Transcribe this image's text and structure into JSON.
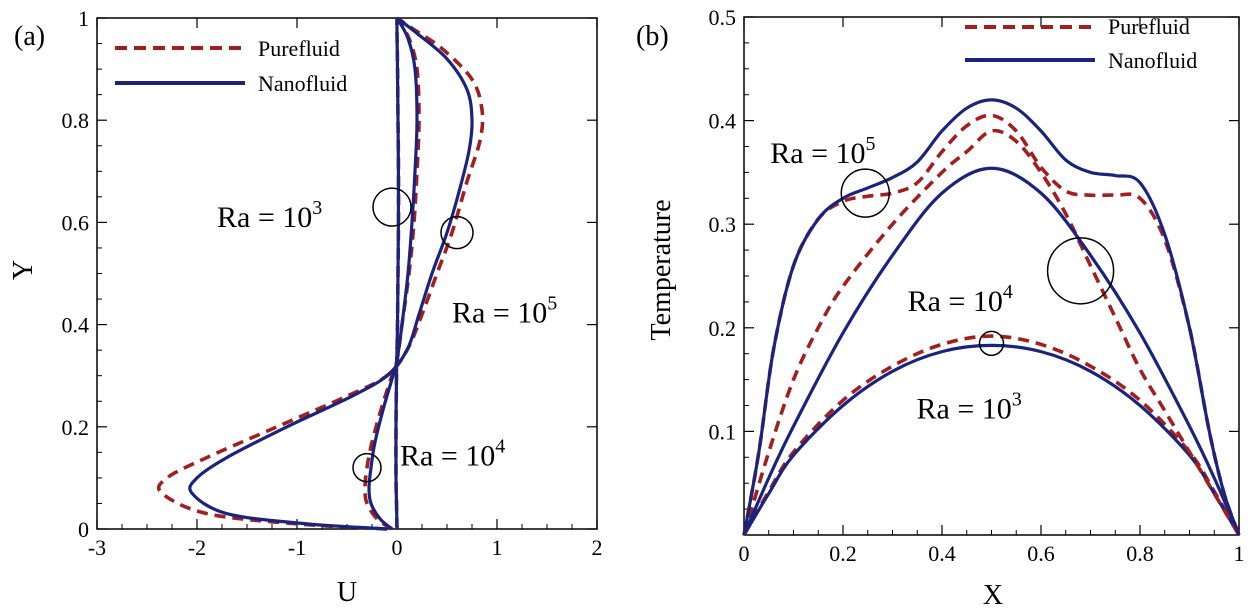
{
  "colors": {
    "pure": "#a31f1f",
    "nano": "#1a237e"
  },
  "chart_data": [
    {
      "type": "line",
      "panel_label": "(a)",
      "xlabel": "U",
      "ylabel": "Y",
      "xlim": [
        -3,
        2
      ],
      "ylim": [
        0,
        1
      ],
      "xticks": [
        "-3",
        "-2",
        "-1",
        "0",
        "1",
        "2"
      ],
      "yticks": [
        "0",
        "0.2",
        "0.4",
        "0.6",
        "0.8",
        "1"
      ],
      "legend": {
        "position": "top-left",
        "entries": [
          "Purefluid",
          "Nanofluid"
        ]
      },
      "annotations": [
        {
          "base": "Ra = 10",
          "exp": "3",
          "at_u": -0.05,
          "at_y": 0.63
        },
        {
          "base": "Ra = 10",
          "exp": "5",
          "at_u": 0.6,
          "at_y": 0.58
        },
        {
          "base": "Ra = 10",
          "exp": "4",
          "at_u": -0.3,
          "at_y": 0.12
        }
      ],
      "series": [
        {
          "name": "Purefluid",
          "ra": "1e3",
          "points": [
            [
              0,
              0
            ],
            [
              -0.005,
              0.05
            ],
            [
              -0.01,
              0.1
            ],
            [
              -0.01,
              0.2
            ],
            [
              -0.005,
              0.3
            ],
            [
              0,
              0.35
            ],
            [
              0.005,
              0.4
            ],
            [
              0.01,
              0.5
            ],
            [
              0.015,
              0.6
            ],
            [
              0.015,
              0.7
            ],
            [
              0.01,
              0.8
            ],
            [
              0.006,
              0.9
            ],
            [
              0,
              0.97
            ],
            [
              0,
              1
            ]
          ]
        },
        {
          "name": "Nanofluid",
          "ra": "1e3",
          "points": [
            [
              0,
              0
            ],
            [
              -0.005,
              0.05
            ],
            [
              -0.01,
              0.1
            ],
            [
              -0.01,
              0.2
            ],
            [
              -0.005,
              0.3
            ],
            [
              0,
              0.35
            ],
            [
              0.005,
              0.4
            ],
            [
              0.01,
              0.5
            ],
            [
              0.014,
              0.6
            ],
            [
              0.014,
              0.7
            ],
            [
              0.01,
              0.8
            ],
            [
              0.005,
              0.9
            ],
            [
              0,
              0.97
            ],
            [
              0,
              1
            ]
          ]
        },
        {
          "name": "Purefluid",
          "ra": "1e4",
          "points": [
            [
              -0.05,
              0
            ],
            [
              -0.2,
              0.02
            ],
            [
              -0.3,
              0.05
            ],
            [
              -0.32,
              0.08
            ],
            [
              -0.3,
              0.12
            ],
            [
              -0.25,
              0.17
            ],
            [
              -0.15,
              0.24
            ],
            [
              -0.05,
              0.3
            ],
            [
              0,
              0.33
            ],
            [
              0.05,
              0.4
            ],
            [
              0.12,
              0.5
            ],
            [
              0.17,
              0.6
            ],
            [
              0.2,
              0.7
            ],
            [
              0.22,
              0.8
            ],
            [
              0.2,
              0.9
            ],
            [
              0.12,
              0.96
            ],
            [
              0,
              1
            ]
          ]
        },
        {
          "name": "Nanofluid",
          "ra": "1e4",
          "points": [
            [
              -0.05,
              0
            ],
            [
              -0.17,
              0.02
            ],
            [
              -0.26,
              0.05
            ],
            [
              -0.28,
              0.08
            ],
            [
              -0.26,
              0.12
            ],
            [
              -0.22,
              0.17
            ],
            [
              -0.13,
              0.24
            ],
            [
              -0.04,
              0.3
            ],
            [
              0,
              0.33
            ],
            [
              0.05,
              0.4
            ],
            [
              0.11,
              0.5
            ],
            [
              0.15,
              0.6
            ],
            [
              0.18,
              0.7
            ],
            [
              0.2,
              0.8
            ],
            [
              0.18,
              0.9
            ],
            [
              0.11,
              0.96
            ],
            [
              0,
              1
            ]
          ]
        },
        {
          "name": "Purefluid",
          "ra": "1e5",
          "points": [
            [
              -0.1,
              0
            ],
            [
              -1.0,
              0.01
            ],
            [
              -1.9,
              0.03
            ],
            [
              -2.35,
              0.07
            ],
            [
              -2.3,
              0.1
            ],
            [
              -1.9,
              0.14
            ],
            [
              -1.2,
              0.2
            ],
            [
              -0.5,
              0.26
            ],
            [
              -0.1,
              0.3
            ],
            [
              0.1,
              0.35
            ],
            [
              0.25,
              0.42
            ],
            [
              0.4,
              0.5
            ],
            [
              0.55,
              0.58
            ],
            [
              0.7,
              0.68
            ],
            [
              0.83,
              0.76
            ],
            [
              0.85,
              0.82
            ],
            [
              0.75,
              0.88
            ],
            [
              0.45,
              0.94
            ],
            [
              0.15,
              0.98
            ],
            [
              0,
              1
            ]
          ]
        },
        {
          "name": "Nanofluid",
          "ra": "1e5",
          "points": [
            [
              -0.1,
              0
            ],
            [
              -0.9,
              0.01
            ],
            [
              -1.7,
              0.03
            ],
            [
              -2.05,
              0.07
            ],
            [
              -2.0,
              0.1
            ],
            [
              -1.7,
              0.14
            ],
            [
              -1.1,
              0.2
            ],
            [
              -0.45,
              0.26
            ],
            [
              -0.1,
              0.3
            ],
            [
              0.1,
              0.35
            ],
            [
              0.22,
              0.42
            ],
            [
              0.35,
              0.5
            ],
            [
              0.5,
              0.58
            ],
            [
              0.62,
              0.66
            ],
            [
              0.72,
              0.74
            ],
            [
              0.75,
              0.8
            ],
            [
              0.7,
              0.86
            ],
            [
              0.5,
              0.92
            ],
            [
              0.2,
              0.97
            ],
            [
              0,
              1
            ]
          ]
        }
      ]
    },
    {
      "type": "line",
      "panel_label": "(b)",
      "xlabel": "X",
      "ylabel": "Temperature",
      "xlim": [
        0,
        1
      ],
      "ylim": [
        0,
        0.5
      ],
      "xticks": [
        "0",
        "0.2",
        "0.4",
        "0.6",
        "0.8",
        "1"
      ],
      "yticks": [
        "0.1",
        "0.2",
        "0.3",
        "0.4",
        "0.5"
      ],
      "legend": {
        "position": "top-right",
        "entries": [
          "Purefluid",
          "Nanofluid"
        ]
      },
      "annotations": [
        {
          "base": "Ra = 10",
          "exp": "5",
          "at_x": 0.245,
          "at_t": 0.33
        },
        {
          "base": "Ra = 10",
          "exp": "4",
          "at_x": 0.68,
          "at_t": 0.255
        },
        {
          "base": "Ra = 10",
          "exp": "3",
          "at_x": 0.5,
          "at_t": 0.185
        }
      ],
      "series": [
        {
          "name": "Purefluid",
          "ra": "1e3",
          "points": [
            [
              0,
              0
            ],
            [
              0.05,
              0.042
            ],
            [
              0.1,
              0.08
            ],
            [
              0.2,
              0.13
            ],
            [
              0.3,
              0.163
            ],
            [
              0.4,
              0.184
            ],
            [
              0.5,
              0.192
            ],
            [
              0.6,
              0.184
            ],
            [
              0.7,
              0.163
            ],
            [
              0.8,
              0.13
            ],
            [
              0.9,
              0.08
            ],
            [
              0.95,
              0.042
            ],
            [
              1,
              0
            ]
          ]
        },
        {
          "name": "Nanofluid",
          "ra": "1e3",
          "points": [
            [
              0,
              0
            ],
            [
              0.05,
              0.04
            ],
            [
              0.1,
              0.077
            ],
            [
              0.2,
              0.125
            ],
            [
              0.3,
              0.158
            ],
            [
              0.4,
              0.177
            ],
            [
              0.5,
              0.183
            ],
            [
              0.6,
              0.177
            ],
            [
              0.7,
              0.158
            ],
            [
              0.8,
              0.125
            ],
            [
              0.9,
              0.077
            ],
            [
              0.95,
              0.04
            ],
            [
              1,
              0
            ]
          ]
        },
        {
          "name": "Purefluid",
          "ra": "1e4",
          "points": [
            [
              0,
              0
            ],
            [
              0.05,
              0.08
            ],
            [
              0.1,
              0.15
            ],
            [
              0.15,
              0.2
            ],
            [
              0.2,
              0.24
            ],
            [
              0.3,
              0.3
            ],
            [
              0.4,
              0.35
            ],
            [
              0.45,
              0.37
            ],
            [
              0.5,
              0.39
            ],
            [
              0.55,
              0.38
            ],
            [
              0.6,
              0.35
            ],
            [
              0.65,
              0.31
            ],
            [
              0.7,
              0.26
            ],
            [
              0.75,
              0.21
            ],
            [
              0.8,
              0.16
            ],
            [
              0.85,
              0.12
            ],
            [
              0.9,
              0.08
            ],
            [
              0.95,
              0.04
            ],
            [
              1,
              0
            ]
          ]
        },
        {
          "name": "Nanofluid",
          "ra": "1e4",
          "points": [
            [
              0,
              0
            ],
            [
              0.05,
              0.055
            ],
            [
              0.1,
              0.105
            ],
            [
              0.2,
              0.195
            ],
            [
              0.3,
              0.27
            ],
            [
              0.4,
              0.33
            ],
            [
              0.5,
              0.354
            ],
            [
              0.6,
              0.33
            ],
            [
              0.7,
              0.27
            ],
            [
              0.8,
              0.195
            ],
            [
              0.9,
              0.105
            ],
            [
              0.95,
              0.055
            ],
            [
              1,
              0
            ]
          ]
        },
        {
          "name": "Purefluid",
          "ra": "1e5",
          "points": [
            [
              0,
              0
            ],
            [
              0.03,
              0.08
            ],
            [
              0.06,
              0.18
            ],
            [
              0.1,
              0.26
            ],
            [
              0.15,
              0.305
            ],
            [
              0.2,
              0.322
            ],
            [
              0.25,
              0.327
            ],
            [
              0.3,
              0.33
            ],
            [
              0.35,
              0.34
            ],
            [
              0.4,
              0.37
            ],
            [
              0.45,
              0.395
            ],
            [
              0.5,
              0.405
            ],
            [
              0.55,
              0.39
            ],
            [
              0.6,
              0.355
            ],
            [
              0.65,
              0.332
            ],
            [
              0.7,
              0.328
            ],
            [
              0.75,
              0.328
            ],
            [
              0.8,
              0.325
            ],
            [
              0.85,
              0.285
            ],
            [
              0.9,
              0.2
            ],
            [
              0.94,
              0.1
            ],
            [
              0.97,
              0.04
            ],
            [
              1,
              0
            ]
          ]
        },
        {
          "name": "Nanofluid",
          "ra": "1e5",
          "points": [
            [
              0,
              0
            ],
            [
              0.03,
              0.08
            ],
            [
              0.06,
              0.18
            ],
            [
              0.1,
              0.26
            ],
            [
              0.15,
              0.305
            ],
            [
              0.2,
              0.325
            ],
            [
              0.25,
              0.335
            ],
            [
              0.3,
              0.345
            ],
            [
              0.35,
              0.36
            ],
            [
              0.4,
              0.39
            ],
            [
              0.45,
              0.412
            ],
            [
              0.5,
              0.42
            ],
            [
              0.55,
              0.412
            ],
            [
              0.6,
              0.39
            ],
            [
              0.65,
              0.362
            ],
            [
              0.7,
              0.35
            ],
            [
              0.75,
              0.347
            ],
            [
              0.8,
              0.34
            ],
            [
              0.85,
              0.29
            ],
            [
              0.9,
              0.2
            ],
            [
              0.94,
              0.1
            ],
            [
              0.97,
              0.04
            ],
            [
              1,
              0
            ]
          ]
        }
      ]
    }
  ]
}
